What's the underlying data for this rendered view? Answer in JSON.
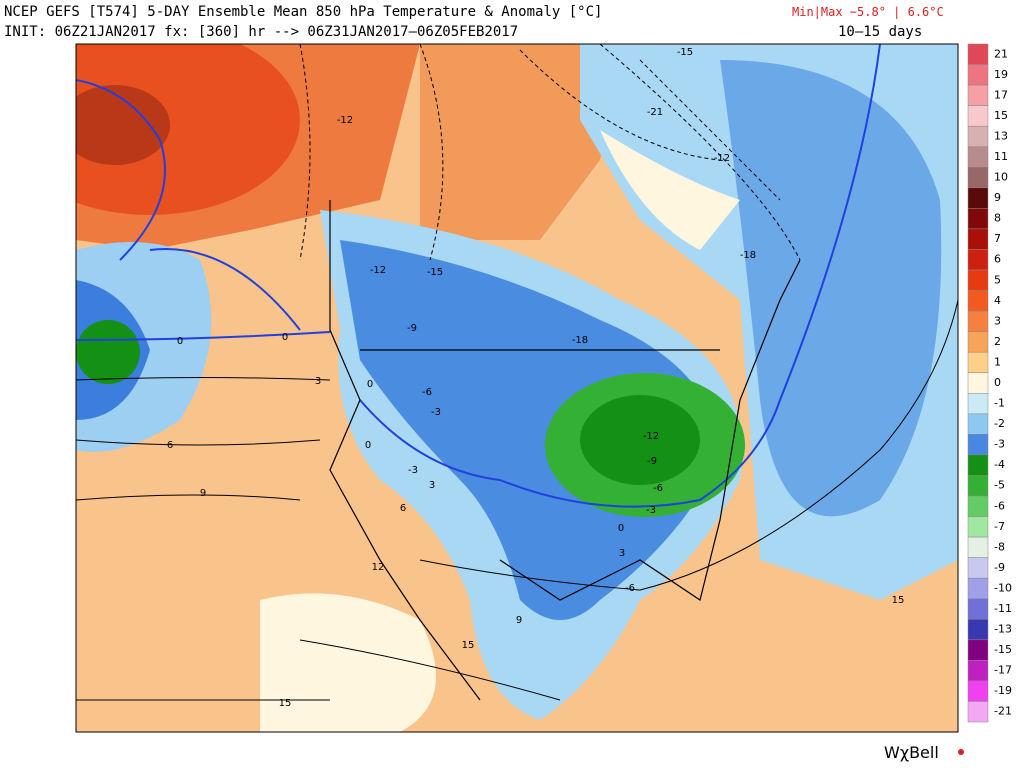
{
  "header": {
    "title": "NCEP GEFS [T574] 5-DAY Ensemble Mean 850 hPa Temperature & Anomaly [°C]",
    "minmax": "Min|Max −5.8° | 6.6°C",
    "init": "INIT: 06Z21JAN2017 fx: [360] hr --> 06Z31JAN2017–06Z05FEB2017",
    "period": "10–15 days"
  },
  "colorbar": {
    "labels": [
      "21",
      "19",
      "17",
      "15",
      "13",
      "11",
      "10",
      "9",
      "8",
      "7",
      "6",
      "5",
      "4",
      "3",
      "2",
      "1",
      "0",
      "-1",
      "-2",
      "-3",
      "-4",
      "-5",
      "-6",
      "-7",
      "-8",
      "-9",
      "-10",
      "-11",
      "-13",
      "-15",
      "-17",
      "-19",
      "-21"
    ],
    "colors": [
      "#e04858",
      "#ee7480",
      "#f4a0a6",
      "#f8c8cc",
      "#d8b0b0",
      "#b88c8c",
      "#986868",
      "#5a0a0a",
      "#800808",
      "#a81008",
      "#cc2010",
      "#e83a10",
      "#f25a20",
      "#f68040",
      "#f8a458",
      "#fcd088",
      "#fff6e0",
      "#cceaf6",
      "#8cc8f0",
      "#4888e0",
      "#149014",
      "#34b034",
      "#64cc64",
      "#a0e8a0",
      "#e4f0e4",
      "#c8c8f0",
      "#a0a0e8",
      "#7070d8",
      "#3838b0",
      "#800080",
      "#c020c0",
      "#f040f0",
      "#f4a8f4"
    ]
  },
  "map": {
    "contour_labels": [
      "-12",
      "-21",
      "-15",
      "-12",
      "-18",
      "-12",
      "-15",
      "-9",
      "0",
      "0",
      "-18",
      "-6",
      "-3",
      "3",
      "0",
      "0",
      "6",
      "-3",
      "3",
      "9",
      "6",
      "-12",
      "-9",
      "-6",
      "-3",
      "0",
      "3",
      "12",
      "-6",
      "9",
      "15",
      "15",
      "15"
    ]
  },
  "logo": "WχBell"
}
